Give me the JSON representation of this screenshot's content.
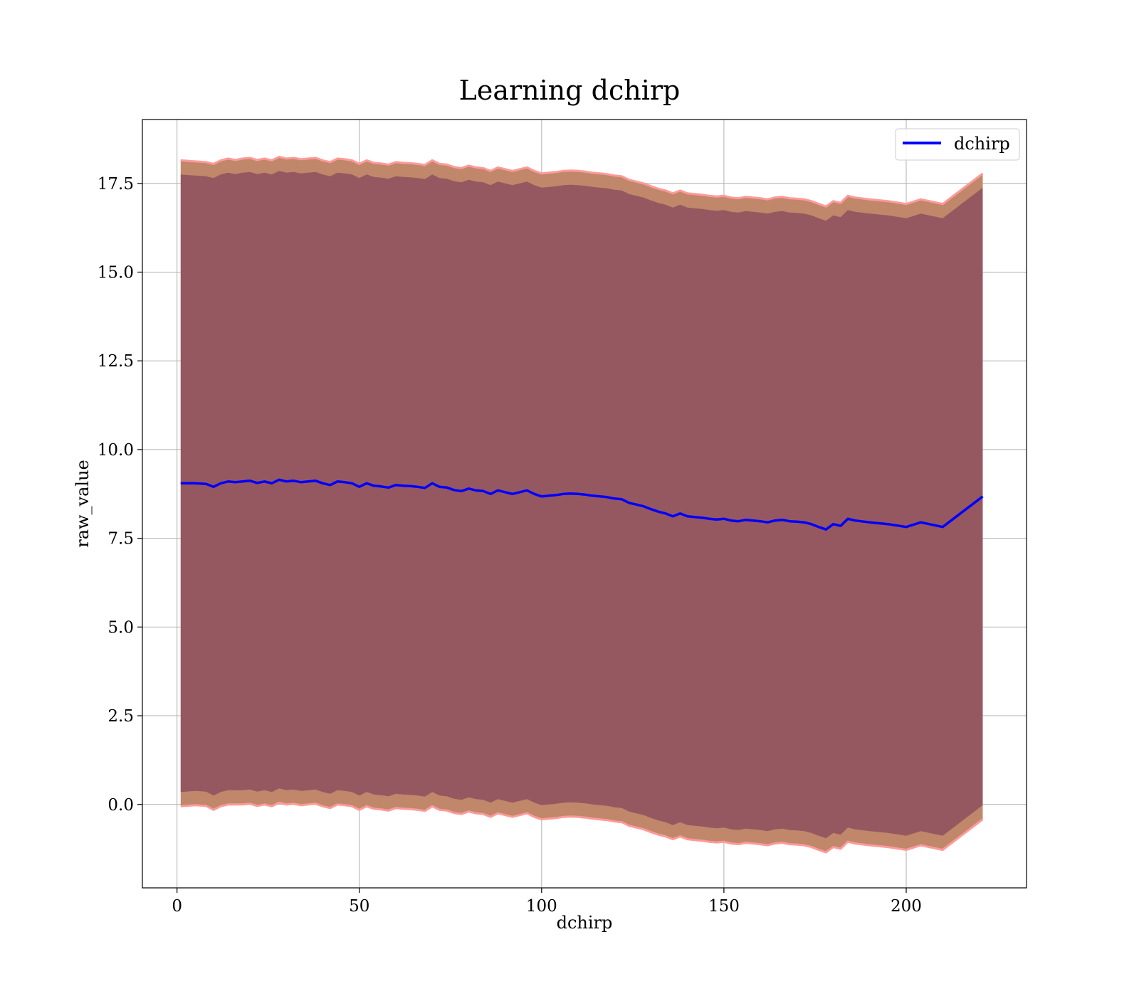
{
  "chart_data": {
    "type": "line",
    "title": "Learning dchirp",
    "xlabel": "dchirp",
    "ylabel": "raw_value",
    "xlim": [
      -9.5,
      233
    ],
    "ylim": [
      -2.35,
      19.3
    ],
    "xticks": [
      0,
      50,
      100,
      150,
      200
    ],
    "xtick_labels": [
      "0",
      "50",
      "100",
      "150",
      "200"
    ],
    "yticks": [
      0,
      2.5,
      5,
      7.5,
      10,
      12.5,
      15,
      17.5
    ],
    "ytick_labels": [
      "0.0",
      "2.5",
      "5.0",
      "7.5",
      "10.0",
      "12.5",
      "15.0",
      "17.5"
    ],
    "grid": true,
    "legend": {
      "position": "top-right",
      "entries": [
        "dchirp"
      ]
    },
    "colors": {
      "line": "#0000ff",
      "inner_band": "#8b4a5e",
      "outer_band": "#c0876a",
      "band_edge": "#ff9a9a"
    },
    "series": [
      {
        "name": "dchirp",
        "x": [
          1,
          5,
          8,
          10,
          12,
          14,
          16,
          18,
          20,
          22,
          24,
          26,
          28,
          30,
          32,
          34,
          36,
          38,
          40,
          42,
          44,
          46,
          48,
          50,
          52,
          54,
          56,
          58,
          60,
          62,
          64,
          66,
          68,
          70,
          72,
          74,
          76,
          78,
          80,
          82,
          84,
          86,
          88,
          90,
          92,
          94,
          96,
          98,
          100,
          102,
          104,
          106,
          108,
          110,
          112,
          114,
          116,
          118,
          120,
          122,
          124,
          126,
          128,
          130,
          132,
          134,
          136,
          138,
          140,
          142,
          144,
          146,
          148,
          150,
          152,
          154,
          156,
          158,
          160,
          162,
          164,
          166,
          168,
          170,
          172,
          174,
          176,
          178,
          180,
          182,
          184,
          186,
          190,
          195,
          200,
          204,
          210,
          221
        ],
        "mean": [
          9.05,
          9.05,
          9.03,
          8.95,
          9.05,
          9.1,
          9.08,
          9.1,
          9.12,
          9.06,
          9.1,
          9.05,
          9.15,
          9.1,
          9.12,
          9.08,
          9.1,
          9.12,
          9.05,
          9.0,
          9.1,
          9.08,
          9.05,
          8.95,
          9.05,
          8.98,
          8.96,
          8.93,
          9.0,
          8.98,
          8.97,
          8.95,
          8.92,
          9.05,
          8.95,
          8.93,
          8.86,
          8.83,
          8.9,
          8.85,
          8.83,
          8.75,
          8.85,
          8.8,
          8.75,
          8.8,
          8.85,
          8.75,
          8.68,
          8.7,
          8.72,
          8.75,
          8.76,
          8.75,
          8.73,
          8.7,
          8.68,
          8.66,
          8.62,
          8.6,
          8.5,
          8.45,
          8.4,
          8.32,
          8.25,
          8.2,
          8.12,
          8.2,
          8.12,
          8.1,
          8.08,
          8.05,
          8.03,
          8.05,
          8.0,
          7.98,
          8.02,
          8.0,
          7.98,
          7.95,
          8.0,
          8.02,
          7.98,
          7.97,
          7.95,
          7.9,
          7.82,
          7.75,
          7.9,
          7.85,
          8.05,
          8.0,
          7.95,
          7.9,
          7.82,
          7.95,
          7.82,
          8.68
        ],
        "outer_upper": [
          18.15,
          18.12,
          18.1,
          18.05,
          18.15,
          18.2,
          18.16,
          18.2,
          18.22,
          18.16,
          18.2,
          18.15,
          18.25,
          18.2,
          18.22,
          18.18,
          18.2,
          18.22,
          18.15,
          18.1,
          18.2,
          18.18,
          18.15,
          18.05,
          18.15,
          18.08,
          18.06,
          18.03,
          18.1,
          18.08,
          18.07,
          18.05,
          18.02,
          18.15,
          18.05,
          18.03,
          17.96,
          17.93,
          18.0,
          17.95,
          17.93,
          17.85,
          17.95,
          17.9,
          17.85,
          17.9,
          17.95,
          17.85,
          17.78,
          17.8,
          17.82,
          17.85,
          17.86,
          17.85,
          17.83,
          17.8,
          17.78,
          17.76,
          17.72,
          17.7,
          17.6,
          17.55,
          17.5,
          17.42,
          17.35,
          17.3,
          17.22,
          17.3,
          17.22,
          17.2,
          17.18,
          17.15,
          17.13,
          17.15,
          17.1,
          17.08,
          17.12,
          17.1,
          17.08,
          17.05,
          17.1,
          17.12,
          17.08,
          17.07,
          17.05,
          17.0,
          16.92,
          16.85,
          17.0,
          16.95,
          17.15,
          17.1,
          17.05,
          17.0,
          16.92,
          17.05,
          16.92,
          17.78
        ],
        "inner_upper": [
          17.75,
          17.72,
          17.7,
          17.65,
          17.75,
          17.8,
          17.76,
          17.8,
          17.82,
          17.76,
          17.8,
          17.75,
          17.85,
          17.8,
          17.82,
          17.78,
          17.8,
          17.82,
          17.75,
          17.7,
          17.8,
          17.78,
          17.75,
          17.65,
          17.75,
          17.68,
          17.66,
          17.63,
          17.7,
          17.68,
          17.67,
          17.65,
          17.62,
          17.75,
          17.65,
          17.63,
          17.56,
          17.53,
          17.6,
          17.55,
          17.53,
          17.45,
          17.55,
          17.5,
          17.45,
          17.5,
          17.55,
          17.45,
          17.38,
          17.4,
          17.42,
          17.45,
          17.46,
          17.45,
          17.43,
          17.4,
          17.38,
          17.36,
          17.32,
          17.3,
          17.2,
          17.15,
          17.1,
          17.02,
          16.95,
          16.9,
          16.82,
          16.9,
          16.82,
          16.8,
          16.78,
          16.75,
          16.73,
          16.75,
          16.7,
          16.68,
          16.72,
          16.7,
          16.68,
          16.65,
          16.7,
          16.72,
          16.68,
          16.67,
          16.65,
          16.6,
          16.52,
          16.45,
          16.6,
          16.55,
          16.75,
          16.7,
          16.65,
          16.6,
          16.52,
          16.65,
          16.52,
          17.38
        ],
        "inner_lower": [
          0.35,
          0.38,
          0.36,
          0.25,
          0.35,
          0.4,
          0.4,
          0.4,
          0.42,
          0.36,
          0.4,
          0.35,
          0.45,
          0.4,
          0.42,
          0.38,
          0.4,
          0.42,
          0.35,
          0.3,
          0.4,
          0.38,
          0.35,
          0.25,
          0.35,
          0.28,
          0.26,
          0.23,
          0.3,
          0.28,
          0.27,
          0.25,
          0.22,
          0.35,
          0.25,
          0.23,
          0.16,
          0.13,
          0.2,
          0.15,
          0.13,
          0.05,
          0.15,
          0.1,
          0.05,
          0.1,
          0.15,
          0.05,
          -0.02,
          0.0,
          0.02,
          0.05,
          0.06,
          0.05,
          0.03,
          0.0,
          -0.02,
          -0.04,
          -0.08,
          -0.1,
          -0.2,
          -0.25,
          -0.3,
          -0.38,
          -0.45,
          -0.5,
          -0.58,
          -0.5,
          -0.58,
          -0.6,
          -0.62,
          -0.65,
          -0.67,
          -0.65,
          -0.7,
          -0.72,
          -0.68,
          -0.7,
          -0.72,
          -0.75,
          -0.7,
          -0.68,
          -0.72,
          -0.73,
          -0.75,
          -0.8,
          -0.88,
          -0.95,
          -0.8,
          -0.85,
          -0.65,
          -0.7,
          -0.75,
          -0.8,
          -0.88,
          -0.75,
          -0.88,
          -0.02
        ],
        "outer_lower": [
          -0.05,
          -0.02,
          -0.04,
          -0.15,
          -0.05,
          0.0,
          0.0,
          0.0,
          0.02,
          -0.04,
          0.0,
          -0.05,
          0.05,
          0.0,
          0.02,
          -0.02,
          0.0,
          0.02,
          -0.05,
          -0.1,
          0.0,
          -0.02,
          -0.05,
          -0.15,
          -0.05,
          -0.12,
          -0.14,
          -0.17,
          -0.1,
          -0.12,
          -0.13,
          -0.15,
          -0.18,
          -0.05,
          -0.15,
          -0.17,
          -0.24,
          -0.27,
          -0.2,
          -0.25,
          -0.27,
          -0.35,
          -0.25,
          -0.3,
          -0.35,
          -0.3,
          -0.25,
          -0.35,
          -0.42,
          -0.4,
          -0.38,
          -0.35,
          -0.34,
          -0.35,
          -0.37,
          -0.4,
          -0.42,
          -0.44,
          -0.48,
          -0.5,
          -0.6,
          -0.65,
          -0.7,
          -0.78,
          -0.85,
          -0.9,
          -0.98,
          -0.9,
          -0.98,
          -1.0,
          -1.02,
          -1.05,
          -1.07,
          -1.05,
          -1.1,
          -1.12,
          -1.08,
          -1.1,
          -1.12,
          -1.15,
          -1.1,
          -1.08,
          -1.12,
          -1.13,
          -1.15,
          -1.2,
          -1.28,
          -1.35,
          -1.2,
          -1.25,
          -1.05,
          -1.1,
          -1.15,
          -1.2,
          -1.28,
          -1.15,
          -1.28,
          -0.42
        ]
      }
    ]
  }
}
